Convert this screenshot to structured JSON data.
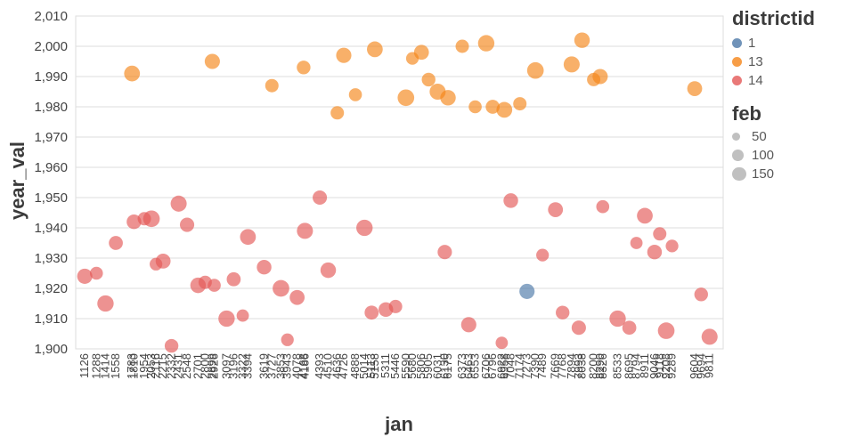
{
  "chart_data": {
    "type": "scatter",
    "xlabel": "jan",
    "ylabel": "year_val",
    "ylim": [
      1900,
      2010
    ],
    "y_ticks": [
      1900,
      1910,
      1920,
      1930,
      1940,
      1950,
      1960,
      1970,
      1980,
      1990,
      2000,
      2010
    ],
    "y_tick_labels": [
      "1,900",
      "1,910",
      "1,920",
      "1,930",
      "1,940",
      "1,950",
      "1,960",
      "1,970",
      "1,980",
      "1,990",
      "2,000",
      "2,010"
    ],
    "grid": true,
    "legend_position": "right",
    "legend": {
      "color": {
        "title": "districtid",
        "entries": [
          {
            "label": "1",
            "color": "#4c78a8"
          },
          {
            "label": "13",
            "color": "#f58518"
          },
          {
            "label": "14",
            "color": "#e45756"
          }
        ]
      },
      "size": {
        "title": "feb",
        "entries": [
          {
            "label": "50",
            "value": 50
          },
          {
            "label": "100",
            "value": 100
          },
          {
            "label": "150",
            "value": 150
          }
        ]
      }
    },
    "point_fields": [
      "jan",
      "x_frac",
      "year_val",
      "feb",
      "districtid"
    ],
    "points": [
      [
        1126,
        0.014,
        1924,
        130,
        14
      ],
      [
        1288,
        0.032,
        1925,
        95,
        14
      ],
      [
        1414,
        0.046,
        1915,
        150,
        14
      ],
      [
        1558,
        0.062,
        1935,
        110,
        14
      ],
      [
        1783,
        0.087,
        1991,
        140,
        13
      ],
      [
        1810,
        0.09,
        1942,
        120,
        14
      ],
      [
        1954,
        0.106,
        1943,
        100,
        14
      ],
      [
        2053,
        0.117,
        1943,
        155,
        14
      ],
      [
        2116,
        0.124,
        1928,
        90,
        14
      ],
      [
        2215,
        0.135,
        1929,
        125,
        14
      ],
      [
        2332,
        0.148,
        1901,
        105,
        14
      ],
      [
        2431,
        0.159,
        1948,
        145,
        14
      ],
      [
        2548,
        0.172,
        1941,
        115,
        14
      ],
      [
        2701,
        0.189,
        1921,
        135,
        14
      ],
      [
        2800,
        0.2,
        1922,
        100,
        14
      ],
      [
        2899,
        0.211,
        1995,
        130,
        13
      ],
      [
        2926,
        0.214,
        1921,
        95,
        14
      ],
      [
        3097,
        0.233,
        1910,
        150,
        14
      ],
      [
        3196,
        0.244,
        1923,
        110,
        14
      ],
      [
        3322,
        0.258,
        1911,
        85,
        14
      ],
      [
        3394,
        0.266,
        1937,
        140,
        14
      ],
      [
        3619,
        0.291,
        1927,
        120,
        14
      ],
      [
        3727,
        0.303,
        1987,
        100,
        13
      ],
      [
        3853,
        0.317,
        1920,
        155,
        14
      ],
      [
        3943,
        0.327,
        1903,
        90,
        14
      ],
      [
        4078,
        0.342,
        1917,
        125,
        14
      ],
      [
        4168,
        0.352,
        1993,
        105,
        13
      ],
      [
        4186,
        0.354,
        1939,
        145,
        14
      ],
      [
        4393,
        0.377,
        1950,
        115,
        14
      ],
      [
        4510,
        0.39,
        1926,
        135,
        14
      ],
      [
        4636,
        0.404,
        1978,
        100,
        13
      ],
      [
        4726,
        0.414,
        1997,
        130,
        13
      ],
      [
        4888,
        0.432,
        1984,
        95,
        13
      ],
      [
        5014,
        0.446,
        1940,
        150,
        14
      ],
      [
        5113,
        0.457,
        1912,
        110,
        14
      ],
      [
        5158,
        0.462,
        1999,
        140,
        13
      ],
      [
        5311,
        0.479,
        1913,
        120,
        14
      ],
      [
        5446,
        0.494,
        1914,
        100,
        14
      ],
      [
        5590,
        0.51,
        1983,
        155,
        13
      ],
      [
        5680,
        0.52,
        1996,
        90,
        13
      ],
      [
        5806,
        0.534,
        1998,
        125,
        13
      ],
      [
        5905,
        0.545,
        1989,
        105,
        13
      ],
      [
        6031,
        0.559,
        1985,
        145,
        13
      ],
      [
        6130,
        0.57,
        1932,
        115,
        14
      ],
      [
        6175,
        0.575,
        1983,
        135,
        13
      ],
      [
        6373,
        0.597,
        2000,
        100,
        13
      ],
      [
        6463,
        0.607,
        1908,
        130,
        14
      ],
      [
        6553,
        0.617,
        1980,
        95,
        13
      ],
      [
        6706,
        0.634,
        2001,
        150,
        13
      ],
      [
        6796,
        0.644,
        1980,
        110,
        13
      ],
      [
        6922,
        0.658,
        1902,
        85,
        14
      ],
      [
        6958,
        0.662,
        1979,
        140,
        13
      ],
      [
        7048,
        0.672,
        1949,
        120,
        14
      ],
      [
        7174,
        0.686,
        1981,
        100,
        13
      ],
      [
        7273,
        0.697,
        1919,
        130,
        1
      ],
      [
        7390,
        0.71,
        1992,
        155,
        13
      ],
      [
        7489,
        0.721,
        1931,
        90,
        14
      ],
      [
        7669,
        0.741,
        1946,
        125,
        14
      ],
      [
        7768,
        0.752,
        1912,
        105,
        14
      ],
      [
        7894,
        0.766,
        1994,
        145,
        13
      ],
      [
        7993,
        0.777,
        1907,
        115,
        14
      ],
      [
        8038,
        0.782,
        2002,
        135,
        13
      ],
      [
        8200,
        0.8,
        1989,
        100,
        13
      ],
      [
        8290,
        0.81,
        1990,
        130,
        13
      ],
      [
        8326,
        0.814,
        1947,
        95,
        14
      ],
      [
        8533,
        0.837,
        1910,
        150,
        14
      ],
      [
        8695,
        0.855,
        1907,
        110,
        14
      ],
      [
        8794,
        0.866,
        1935,
        85,
        14
      ],
      [
        8911,
        0.879,
        1944,
        140,
        14
      ],
      [
        9046,
        0.894,
        1932,
        120,
        14
      ],
      [
        9118,
        0.902,
        1938,
        100,
        14
      ],
      [
        9208,
        0.912,
        1906,
        155,
        14
      ],
      [
        9289,
        0.921,
        1934,
        90,
        14
      ],
      [
        9604,
        0.956,
        1986,
        125,
        13
      ],
      [
        9694,
        0.966,
        1918,
        105,
        14
      ],
      [
        9811,
        0.979,
        1904,
        145,
        14
      ]
    ],
    "style": {
      "grid_color": "#dddddd",
      "axis_label_color": "#434343",
      "point_opacity": 0.65,
      "size_legend_color": "#8c8c8c"
    }
  }
}
